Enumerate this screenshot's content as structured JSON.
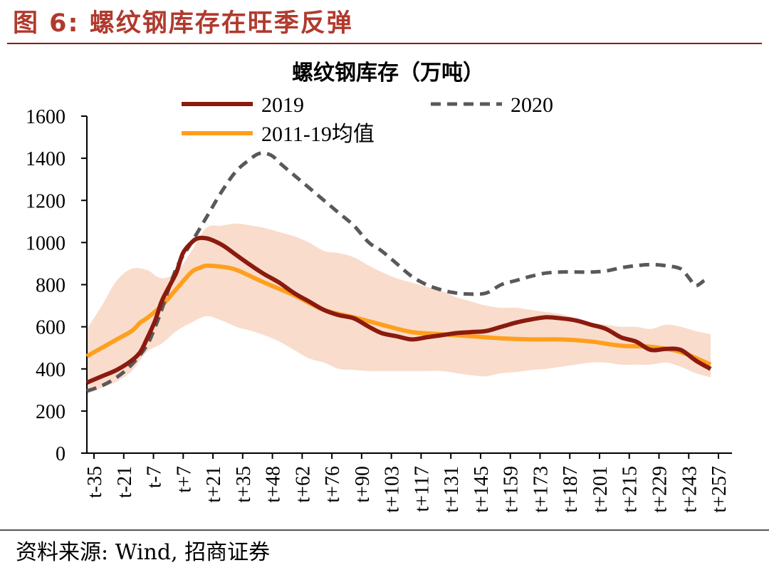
{
  "figure": {
    "title": "图 6:  螺纹钢库存在旺季反弹",
    "source": "资料来源: Wind, 招商证券"
  },
  "chart_data": {
    "type": "line",
    "title": "螺纹钢库存（万吨）",
    "ylim": [
      0,
      1600
    ],
    "yticks": [
      0,
      200,
      400,
      600,
      800,
      1000,
      1200,
      1400,
      1600
    ],
    "xlim": [
      -35,
      265
    ],
    "xticks": [
      "t-35",
      "t-21",
      "t-7",
      "t+7",
      "t+21",
      "t+35",
      "t+48",
      "t+62",
      "t+76",
      "t+90",
      "t+103",
      "t+117",
      "t+131",
      "t+145",
      "t+159",
      "t+173",
      "t+187",
      "t+201",
      "t+215",
      "t+229",
      "t+243",
      "t+257"
    ],
    "grid": false,
    "legend_position": "top",
    "series": [
      {
        "name": "2019",
        "color": "#8b1a0f",
        "style": "solid",
        "x": [
          -35,
          -28,
          -21,
          -14,
          -10,
          -7,
          -3,
          0,
          4,
          7,
          10,
          14,
          17,
          21,
          24,
          28,
          31,
          35,
          42,
          48,
          55,
          62,
          69,
          76,
          83,
          90,
          97,
          103,
          110,
          117,
          124,
          131,
          138,
          145,
          152,
          159,
          166,
          173,
          180,
          187,
          194,
          201,
          208,
          215,
          222,
          229,
          236,
          243,
          250,
          257
        ],
        "y": [
          335,
          365,
          395,
          440,
          480,
          540,
          630,
          720,
          800,
          860,
          950,
          1000,
          1020,
          1020,
          1010,
          990,
          970,
          940,
          890,
          850,
          810,
          760,
          720,
          680,
          655,
          640,
          600,
          570,
          555,
          540,
          550,
          560,
          570,
          575,
          580,
          600,
          620,
          635,
          645,
          640,
          630,
          610,
          590,
          550,
          530,
          490,
          495,
          490,
          440,
          400
        ]
      },
      {
        "name": "2020",
        "color": "#595959",
        "style": "dashed",
        "x": [
          -35,
          -28,
          -21,
          -14,
          -7,
          -3,
          0,
          7,
          14,
          21,
          28,
          35,
          42,
          45,
          48,
          52,
          55,
          62,
          69,
          76,
          83,
          90,
          97,
          103,
          110,
          117,
          124,
          131,
          138,
          145,
          152,
          159,
          166,
          173,
          180,
          187,
          194,
          201,
          208,
          215,
          222,
          229,
          236,
          243,
          247,
          250,
          254
        ],
        "y": [
          295,
          320,
          360,
          420,
          510,
          600,
          680,
          880,
          1000,
          1120,
          1240,
          1340,
          1400,
          1420,
          1425,
          1410,
          1380,
          1320,
          1260,
          1200,
          1140,
          1080,
          1000,
          960,
          900,
          840,
          800,
          775,
          760,
          755,
          760,
          800,
          820,
          840,
          855,
          860,
          860,
          860,
          865,
          880,
          890,
          895,
          890,
          875,
          830,
          795,
          820
        ]
      },
      {
        "name": "2011-19均值",
        "color": "#ff9f1c",
        "style": "solid",
        "x": [
          -35,
          -28,
          -21,
          -14,
          -10,
          -7,
          0,
          7,
          14,
          18,
          21,
          28,
          35,
          48,
          62,
          76,
          90,
          103,
          117,
          131,
          145,
          159,
          173,
          187,
          201,
          215,
          229,
          243,
          257
        ],
        "y": [
          460,
          500,
          540,
          580,
          620,
          640,
          700,
          780,
          860,
          880,
          890,
          885,
          870,
          810,
          750,
          680,
          645,
          610,
          575,
          565,
          555,
          545,
          540,
          540,
          530,
          510,
          505,
          480,
          420
        ]
      }
    ],
    "band": {
      "color": "#f9dccc",
      "x": [
        -35,
        -28,
        -21,
        -14,
        -7,
        0,
        7,
        14,
        21,
        28,
        35,
        42,
        48,
        55,
        62,
        69,
        76,
        83,
        90,
        97,
        103,
        110,
        117,
        124,
        131,
        138,
        145,
        152,
        159,
        166,
        173,
        180,
        187,
        194,
        201,
        208,
        215,
        222,
        229,
        236,
        243,
        250,
        257
      ],
      "upper": [
        590,
        700,
        820,
        875,
        870,
        830,
        860,
        960,
        1070,
        1080,
        1090,
        1080,
        1070,
        1050,
        1030,
        1000,
        960,
        950,
        930,
        890,
        860,
        830,
        810,
        790,
        770,
        740,
        720,
        700,
        690,
        690,
        680,
        670,
        660,
        640,
        620,
        610,
        600,
        600,
        590,
        610,
        600,
        580,
        565
      ],
      "lower": [
        280,
        310,
        340,
        390,
        480,
        520,
        580,
        620,
        650,
        630,
        600,
        580,
        560,
        530,
        490,
        450,
        430,
        400,
        395,
        390,
        390,
        390,
        390,
        390,
        390,
        380,
        370,
        365,
        380,
        385,
        395,
        400,
        410,
        420,
        430,
        430,
        420,
        420,
        420,
        430,
        410,
        380,
        360
      ]
    }
  }
}
